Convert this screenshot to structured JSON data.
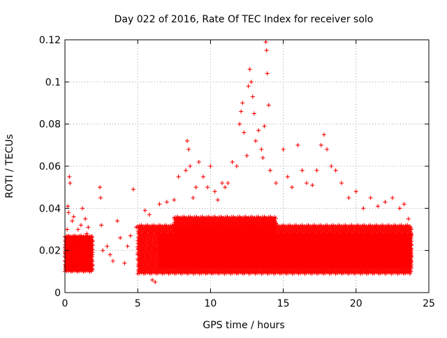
{
  "chart_data": {
    "type": "scatter",
    "title": "Day 022 of 2016, Rate Of TEC Index for receiver solo",
    "xlabel": "GPS time / hours",
    "ylabel": "ROTI / TECUs",
    "xlim": [
      0,
      25
    ],
    "ylim": [
      0,
      0.12
    ],
    "x_ticks": [
      0,
      5,
      10,
      15,
      20,
      25
    ],
    "x_tick_labels": [
      "0",
      "5",
      "10",
      "15",
      "20",
      "25"
    ],
    "y_ticks": [
      0,
      0.02,
      0.04,
      0.06,
      0.08,
      0.1,
      0.12
    ],
    "y_tick_labels": [
      "0",
      "0.02",
      "0.04",
      "0.06",
      "0.08",
      "0.1",
      "0.12"
    ],
    "grid": true,
    "marker": "+",
    "marker_color": "#ff0000",
    "series": [
      {
        "points": [
          [
            0.05,
            0.012
          ],
          [
            0.1,
            0.018
          ],
          [
            0.15,
            0.03
          ],
          [
            0.2,
            0.041
          ],
          [
            0.25,
            0.038
          ],
          [
            0.3,
            0.055
          ],
          [
            0.35,
            0.052
          ],
          [
            0.4,
            0.016
          ],
          [
            0.45,
            0.022
          ],
          [
            0.5,
            0.034
          ],
          [
            0.6,
            0.036
          ],
          [
            0.7,
            0.02
          ],
          [
            0.8,
            0.014
          ],
          [
            0.9,
            0.03
          ],
          [
            1.0,
            0.025
          ],
          [
            1.1,
            0.032
          ],
          [
            1.2,
            0.04
          ],
          [
            1.3,
            0.018
          ],
          [
            1.4,
            0.035
          ],
          [
            1.5,
            0.028
          ],
          [
            1.6,
            0.031
          ],
          [
            1.7,
            0.022
          ],
          [
            1.8,
            0.015
          ],
          [
            2.4,
            0.05
          ],
          [
            2.45,
            0.045
          ],
          [
            2.5,
            0.032
          ],
          [
            2.6,
            0.02
          ],
          [
            2.9,
            0.022
          ],
          [
            3.1,
            0.018
          ],
          [
            3.3,
            0.015
          ],
          [
            3.6,
            0.034
          ],
          [
            3.8,
            0.026
          ],
          [
            4.1,
            0.014
          ],
          [
            4.3,
            0.022
          ],
          [
            4.5,
            0.027
          ],
          [
            4.7,
            0.049
          ],
          [
            4.9,
            0.031
          ],
          [
            5.0,
            0.018
          ],
          [
            5.2,
            0.025
          ],
          [
            5.5,
            0.039
          ],
          [
            5.8,
            0.037
          ],
          [
            6.0,
            0.006
          ],
          [
            6.2,
            0.005
          ],
          [
            6.5,
            0.042
          ],
          [
            7.0,
            0.043
          ],
          [
            7.5,
            0.044
          ],
          [
            7.8,
            0.055
          ],
          [
            8.0,
            0.035
          ],
          [
            8.3,
            0.058
          ],
          [
            8.4,
            0.072
          ],
          [
            8.5,
            0.068
          ],
          [
            8.6,
            0.06
          ],
          [
            8.8,
            0.045
          ],
          [
            9.0,
            0.05
          ],
          [
            9.2,
            0.062
          ],
          [
            9.5,
            0.055
          ],
          [
            9.8,
            0.05
          ],
          [
            10.0,
            0.06
          ],
          [
            10.3,
            0.048
          ],
          [
            10.5,
            0.044
          ],
          [
            10.8,
            0.052
          ],
          [
            11.0,
            0.05
          ],
          [
            11.2,
            0.052
          ],
          [
            11.5,
            0.062
          ],
          [
            11.8,
            0.06
          ],
          [
            12.0,
            0.08
          ],
          [
            12.1,
            0.086
          ],
          [
            12.2,
            0.09
          ],
          [
            12.3,
            0.076
          ],
          [
            12.5,
            0.065
          ],
          [
            12.6,
            0.098
          ],
          [
            12.7,
            0.106
          ],
          [
            12.8,
            0.1
          ],
          [
            12.9,
            0.093
          ],
          [
            13.0,
            0.085
          ],
          [
            13.1,
            0.072
          ],
          [
            13.3,
            0.077
          ],
          [
            13.5,
            0.068
          ],
          [
            13.6,
            0.064
          ],
          [
            13.7,
            0.079
          ],
          [
            13.8,
            0.119
          ],
          [
            13.85,
            0.115
          ],
          [
            13.9,
            0.104
          ],
          [
            14.0,
            0.089
          ],
          [
            14.1,
            0.058
          ],
          [
            14.5,
            0.052
          ],
          [
            15.0,
            0.068
          ],
          [
            15.3,
            0.055
          ],
          [
            15.6,
            0.05
          ],
          [
            16.0,
            0.07
          ],
          [
            16.3,
            0.058
          ],
          [
            16.6,
            0.052
          ],
          [
            17.0,
            0.051
          ],
          [
            17.3,
            0.058
          ],
          [
            17.6,
            0.07
          ],
          [
            17.8,
            0.075
          ],
          [
            18.0,
            0.068
          ],
          [
            18.3,
            0.06
          ],
          [
            18.6,
            0.058
          ],
          [
            19.0,
            0.052
          ],
          [
            19.5,
            0.045
          ],
          [
            20.0,
            0.048
          ],
          [
            20.5,
            0.04
          ],
          [
            21.0,
            0.045
          ],
          [
            21.5,
            0.041
          ],
          [
            22.0,
            0.043
          ],
          [
            22.5,
            0.045
          ],
          [
            23.0,
            0.04
          ],
          [
            23.3,
            0.042
          ],
          [
            23.6,
            0.035
          ],
          [
            23.8,
            0.03
          ]
        ],
        "bands": [
          {
            "x": [
              0.0,
              1.9
            ],
            "y": [
              0.01,
              0.027
            ]
          },
          {
            "x": [
              5.0,
              23.8
            ],
            "y": [
              0.009,
              0.032
            ]
          },
          {
            "x": [
              6.5,
              23.8
            ],
            "y": [
              0.012,
              0.028
            ]
          },
          {
            "x": [
              7.5,
              14.5
            ],
            "y": [
              0.015,
              0.036
            ]
          }
        ]
      }
    ]
  }
}
